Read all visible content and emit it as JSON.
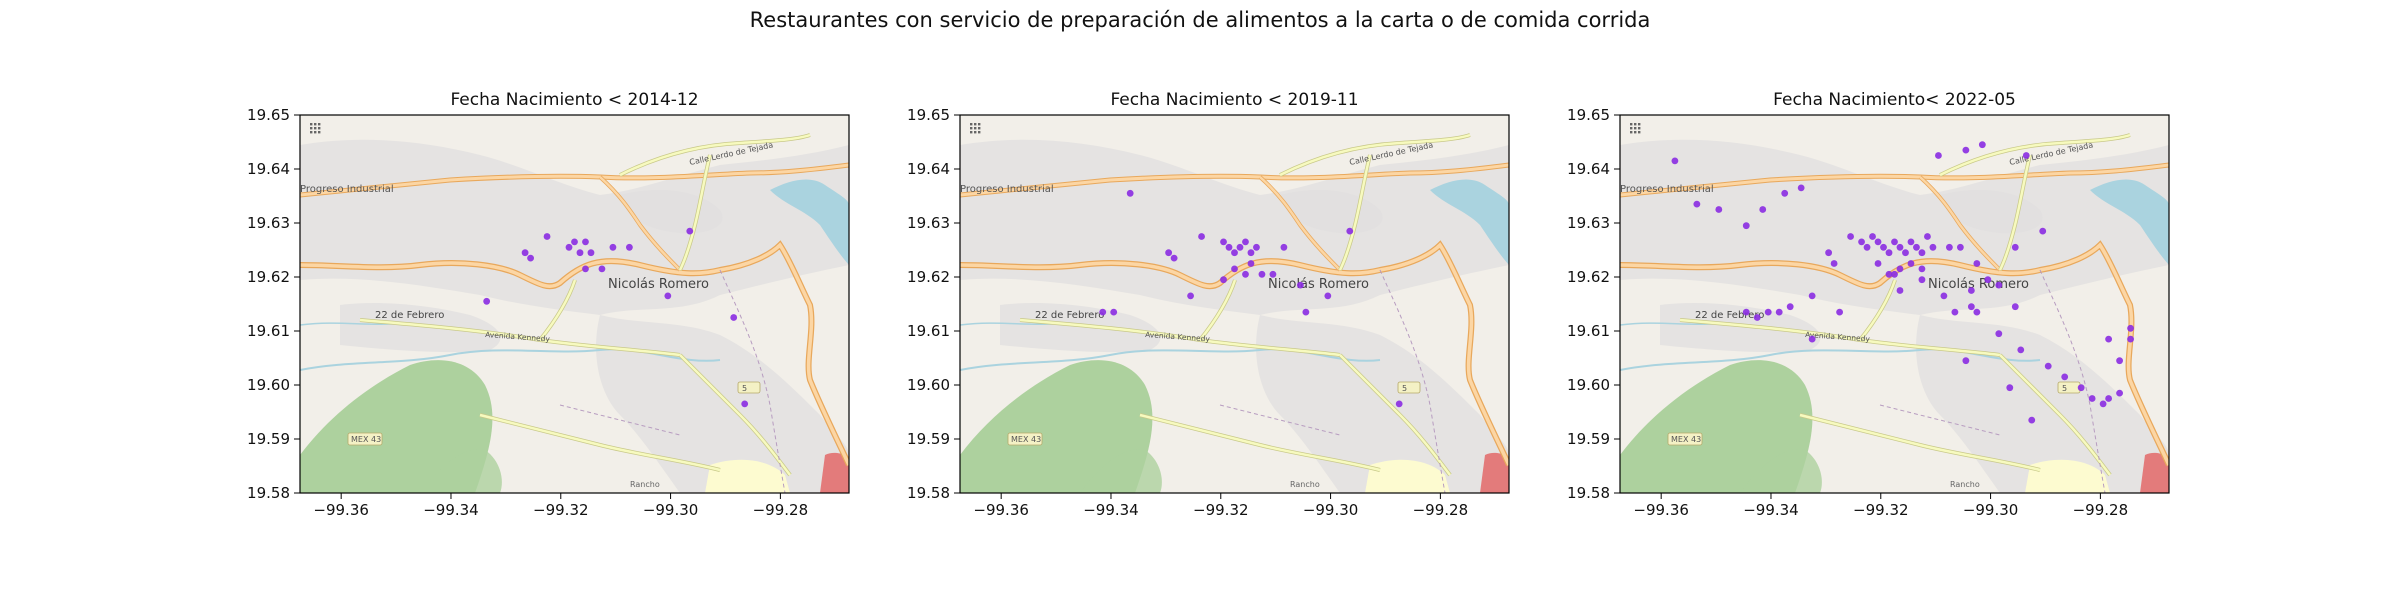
{
  "suptitle": "Restaurantes con servicio de preparación de alimentos a la carta o de comida corrida",
  "map_labels": {
    "town": "Nicolás Romero",
    "progreso": "Progreso Industrial",
    "febrero": "22 de Febrero",
    "lerdo": "Calle Lerdo de Tejada",
    "kennedy": "Avenida Kennedy",
    "mex43": "MEX 43",
    "rancho": "Rancho",
    "route5": "5"
  },
  "colors": {
    "point": "#8a2be2",
    "land": "#f2efe9",
    "park": "#add19e",
    "water": "#aad3df",
    "primary_road": "#fcd6a4",
    "primary_road_casing": "#e8a85c",
    "secondary_road": "#f7fabf",
    "urban": "#e0dfdf"
  },
  "chart_data": [
    {
      "type": "scatter",
      "title": "Fecha Nacimiento < 2014-12",
      "xlim": [
        -99.3675,
        -99.2675
      ],
      "ylim": [
        19.58,
        19.65
      ],
      "xticks": [
        -99.36,
        -99.34,
        -99.32,
        -99.3,
        -99.28
      ],
      "xtick_labels": [
        "−99.36",
        "−99.34",
        "−99.32",
        "−99.30",
        "−99.28"
      ],
      "yticks": [
        19.58,
        19.59,
        19.6,
        19.61,
        19.62,
        19.63,
        19.64,
        19.65
      ],
      "ytick_labels": [
        "19.58",
        "19.59",
        "19.60",
        "19.61",
        "19.62",
        "19.63",
        "19.64",
        "19.65"
      ],
      "x": [
        -99.3265,
        -99.3255,
        -99.3225,
        -99.3185,
        -99.3175,
        -99.3165,
        -99.3155,
        -99.3145,
        -99.3155,
        -99.3125,
        -99.3105,
        -99.3075,
        -99.3005,
        -99.2965,
        -99.2865,
        -99.3335,
        -99.2885
      ],
      "y": [
        19.6245,
        19.6235,
        19.6275,
        19.6255,
        19.6265,
        19.6245,
        19.6265,
        19.6245,
        19.6215,
        19.6215,
        19.6255,
        19.6255,
        19.6165,
        19.6285,
        19.5965,
        19.6155,
        19.6125
      ]
    },
    {
      "type": "scatter",
      "title": "Fecha Nacimiento < 2019-11",
      "xlim": [
        -99.3675,
        -99.2675
      ],
      "ylim": [
        19.58,
        19.65
      ],
      "xticks": [
        -99.36,
        -99.34,
        -99.32,
        -99.3,
        -99.28
      ],
      "xtick_labels": [
        "−99.36",
        "−99.34",
        "−99.32",
        "−99.30",
        "−99.28"
      ],
      "yticks": [
        19.58,
        19.59,
        19.6,
        19.61,
        19.62,
        19.63,
        19.64,
        19.65
      ],
      "ytick_labels": [
        "19.58",
        "19.59",
        "19.60",
        "19.61",
        "19.62",
        "19.63",
        "19.64",
        "19.65"
      ],
      "x": [
        -99.3365,
        -99.3295,
        -99.3285,
        -99.3235,
        -99.3195,
        -99.3185,
        -99.3175,
        -99.3165,
        -99.3155,
        -99.3145,
        -99.3135,
        -99.3175,
        -99.3155,
        -99.3145,
        -99.3125,
        -99.3105,
        -99.3085,
        -99.3055,
        -99.3005,
        -99.2965,
        -99.2875,
        -99.3045,
        -99.3255,
        -99.3415,
        -99.3395,
        -99.3195
      ],
      "y": [
        19.6355,
        19.6245,
        19.6235,
        19.6275,
        19.6265,
        19.6255,
        19.6245,
        19.6255,
        19.6265,
        19.6245,
        19.6255,
        19.6215,
        19.6205,
        19.6225,
        19.6205,
        19.6205,
        19.6255,
        19.6185,
        19.6165,
        19.6285,
        19.5965,
        19.6135,
        19.6165,
        19.6135,
        19.6135,
        19.6195
      ]
    },
    {
      "type": "scatter",
      "title": "Fecha Nacimiento< 2022-05",
      "xlim": [
        -99.3675,
        -99.2675
      ],
      "ylim": [
        19.58,
        19.65
      ],
      "xticks": [
        -99.36,
        -99.34,
        -99.32,
        -99.3,
        -99.28
      ],
      "xtick_labels": [
        "−99.36",
        "−99.34",
        "−99.32",
        "−99.30",
        "−99.28"
      ],
      "yticks": [
        19.58,
        19.59,
        19.6,
        19.61,
        19.62,
        19.63,
        19.64,
        19.65
      ],
      "ytick_labels": [
        "19.58",
        "19.59",
        "19.60",
        "19.61",
        "19.62",
        "19.63",
        "19.64",
        "19.65"
      ],
      "x": [
        -99.3575,
        -99.3535,
        -99.3495,
        -99.3445,
        -99.3415,
        -99.3375,
        -99.3345,
        -99.3295,
        -99.3285,
        -99.3255,
        -99.3235,
        -99.3225,
        -99.3215,
        -99.3205,
        -99.3195,
        -99.3185,
        -99.3175,
        -99.3165,
        -99.3155,
        -99.3145,
        -99.3135,
        -99.3125,
        -99.3115,
        -99.3105,
        -99.3205,
        -99.3185,
        -99.3165,
        -99.3145,
        -99.3125,
        -99.3075,
        -99.3055,
        -99.3025,
        -99.3005,
        -99.2985,
        -99.3095,
        -99.3045,
        -99.3015,
        -99.2935,
        -99.2905,
        -99.2955,
        -99.3085,
        -99.3065,
        -99.3035,
        -99.2985,
        -99.2945,
        -99.2895,
        -99.2865,
        -99.2835,
        -99.2815,
        -99.2795,
        -99.2785,
        -99.2765,
        -99.2765,
        -99.2745,
        -99.2745,
        -99.2785,
        -99.3405,
        -99.3385,
        -99.3365,
        -99.3425,
        -99.3445,
        -99.3325,
        -99.3325,
        -99.3275,
        -99.3175,
        -99.3125,
        -99.3165,
        -99.3045,
        -99.2965,
        -99.2925,
        -99.3025,
        -99.3035,
        -99.2955
      ],
      "y": [
        19.6415,
        19.6335,
        19.6325,
        19.6295,
        19.6325,
        19.6355,
        19.6365,
        19.6245,
        19.6225,
        19.6275,
        19.6265,
        19.6255,
        19.6275,
        19.6265,
        19.6255,
        19.6245,
        19.6265,
        19.6255,
        19.6245,
        19.6265,
        19.6255,
        19.6245,
        19.6275,
        19.6255,
        19.6225,
        19.6205,
        19.6215,
        19.6225,
        19.6215,
        19.6255,
        19.6255,
        19.6225,
        19.6195,
        19.6185,
        19.6425,
        19.6435,
        19.6445,
        19.6425,
        19.6285,
        19.6255,
        19.6165,
        19.6135,
        19.6145,
        19.6095,
        19.6065,
        19.6035,
        19.6015,
        19.5995,
        19.5975,
        19.5965,
        19.5975,
        19.5985,
        19.6045,
        19.6085,
        19.6105,
        19.6085,
        19.6135,
        19.6135,
        19.6145,
        19.6125,
        19.6135,
        19.6085,
        19.6165,
        19.6135,
        19.6205,
        19.6195,
        19.6175,
        19.6045,
        19.5995,
        19.5935,
        19.6135,
        19.6175,
        19.6145
      ]
    }
  ]
}
